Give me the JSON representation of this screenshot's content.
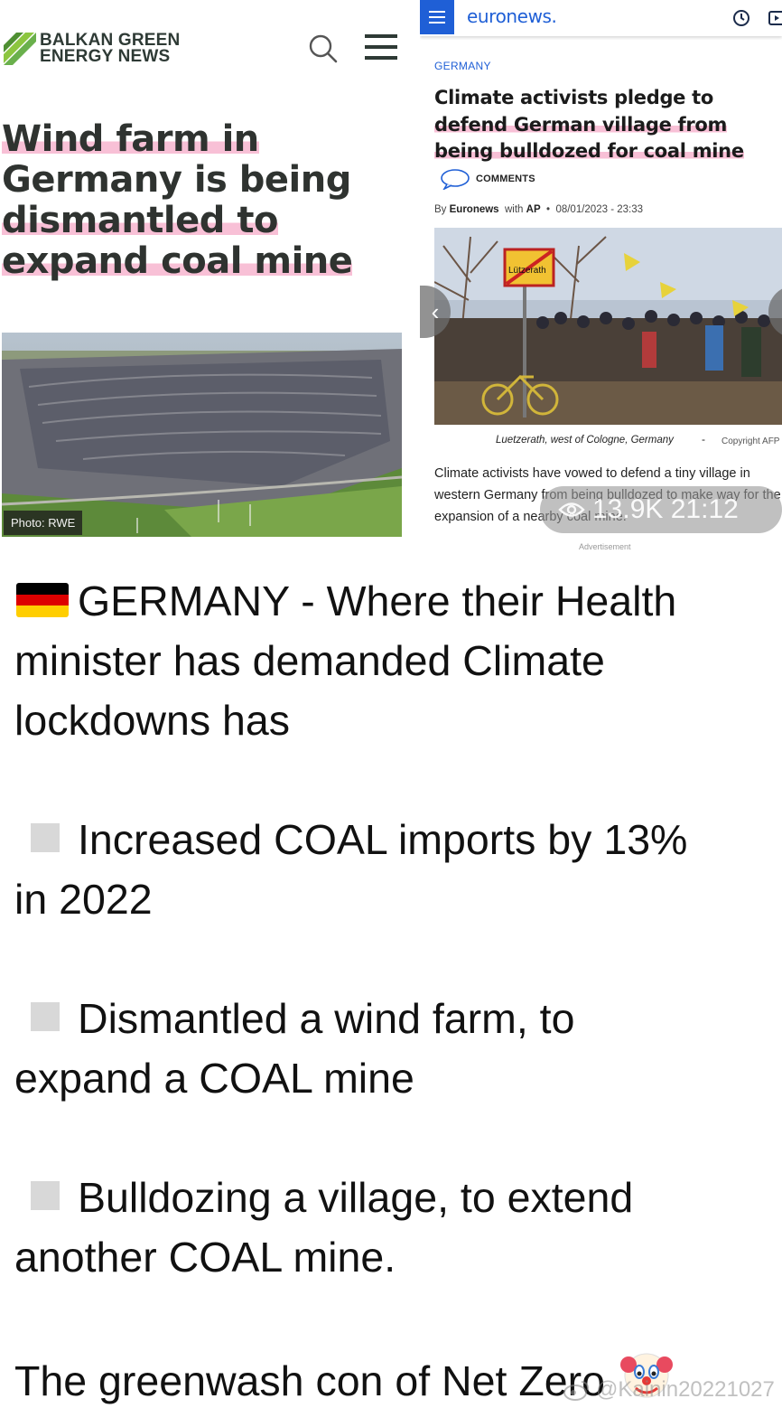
{
  "left_article": {
    "logo_line1": "BALKAN GREEN",
    "logo_line2": "ENERGY NEWS",
    "headline_lines": [
      "Wind farm in",
      "Germany is being",
      "dismantled to",
      "expand coal mine"
    ],
    "photo_credit": "Photo: RWE"
  },
  "right_article": {
    "brand": "euronews.",
    "section": "GERMANY",
    "headline_lines": [
      "Climate activists pledge to",
      "defend German village from",
      "being bulldozed for coal mine"
    ],
    "comments_label": "COMMENTS",
    "byline_prefix": "By",
    "byline_author": "Euronews",
    "byline_with": "with",
    "byline_agency": "AP",
    "byline_date": "08/01/2023 - 23:33",
    "photo_sign_text": "Lützerath",
    "photo_caption": "Luetzerath, west of Cologne, Germany",
    "caption_separator": "-",
    "copyright": "Copyright  AFP",
    "summary": "Climate activists have vowed to defend a tiny village in western Germany from being bulldozed to make way for the expansion of a nearby coal mine.",
    "advertisement_label": "Advertisement",
    "overlay_views_time": "13.9K 21:12"
  },
  "post": {
    "intro_lines": [
      "GERMANY - Where their Health",
      "minister has demanded Climate",
      "lockdowns has"
    ],
    "bullets": [
      {
        "line1": "Increased COAL imports by 13%",
        "line2": "in 2022"
      },
      {
        "line1": "Dismantled a wind farm, to",
        "line2": "expand a COAL mine"
      },
      {
        "line1": "Bulldozing a village, to extend",
        "line2": "another COAL mine."
      }
    ],
    "closing": "The greenwash con of Net Zero"
  },
  "watermark": "@Kainin20221027",
  "colors": {
    "euronews_blue": "#1f5fd6",
    "highlight_pink": "#f28cb4",
    "bgen_green": "#6ab04c",
    "bgen_text": "#2e3a35"
  },
  "icons": [
    "bgen-logo-mark",
    "search-icon",
    "hamburger-menu-icon",
    "clock-icon",
    "play-icon",
    "comment-bubble-icon",
    "chevron-left-icon",
    "eye-icon",
    "german-flag-icon",
    "clown-face-icon",
    "weibo-icon"
  ]
}
